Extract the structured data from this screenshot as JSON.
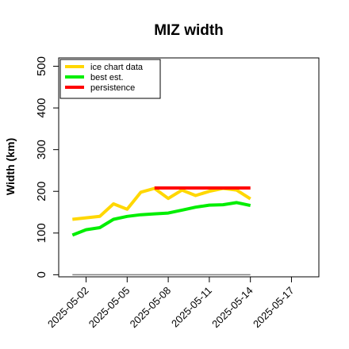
{
  "chart_data": {
    "type": "line",
    "title": "MIZ width",
    "ylabel": "Width (km)",
    "xlabel": "",
    "ylim": [
      -5,
      520
    ],
    "yticks": [
      0,
      100,
      200,
      300,
      400,
      500
    ],
    "xlim": [
      "2025-04-30",
      "2025-05-19"
    ],
    "xticks": [
      "2025-05-02",
      "2025-05-05",
      "2025-05-08",
      "2025-05-11",
      "2025-05-14",
      "2025-05-17"
    ],
    "legend_position": "top-left",
    "series": [
      {
        "name": "ice chart data",
        "color": "#ffd700",
        "x": [
          "2025-05-01",
          "2025-05-03",
          "2025-05-04",
          "2025-05-05",
          "2025-05-06",
          "2025-05-07",
          "2025-05-08",
          "2025-05-09",
          "2025-05-10",
          "2025-05-11",
          "2025-05-12",
          "2025-05-13",
          "2025-05-14"
        ],
        "values": [
          133,
          140,
          170,
          157,
          198,
          207,
          183,
          203,
          190,
          200,
          207,
          203,
          182
        ]
      },
      {
        "name": "best est.",
        "color": "#00ee00",
        "x": [
          "2025-05-01",
          "2025-05-02",
          "2025-05-03",
          "2025-05-04",
          "2025-05-05",
          "2025-05-06",
          "2025-05-07",
          "2025-05-08",
          "2025-05-09",
          "2025-05-10",
          "2025-05-11",
          "2025-05-12",
          "2025-05-13",
          "2025-05-14"
        ],
        "values": [
          95,
          108,
          113,
          133,
          140,
          144,
          146,
          148,
          155,
          162,
          167,
          168,
          173,
          166
        ]
      },
      {
        "name": "persistence",
        "color": "#ff0000",
        "x": [
          "2025-05-07",
          "2025-05-14"
        ],
        "values": [
          208,
          208
        ]
      },
      {
        "name": "",
        "color": "#808080",
        "x": [
          "2025-05-01",
          "2025-05-14"
        ],
        "values": [
          0,
          0
        ]
      }
    ]
  }
}
